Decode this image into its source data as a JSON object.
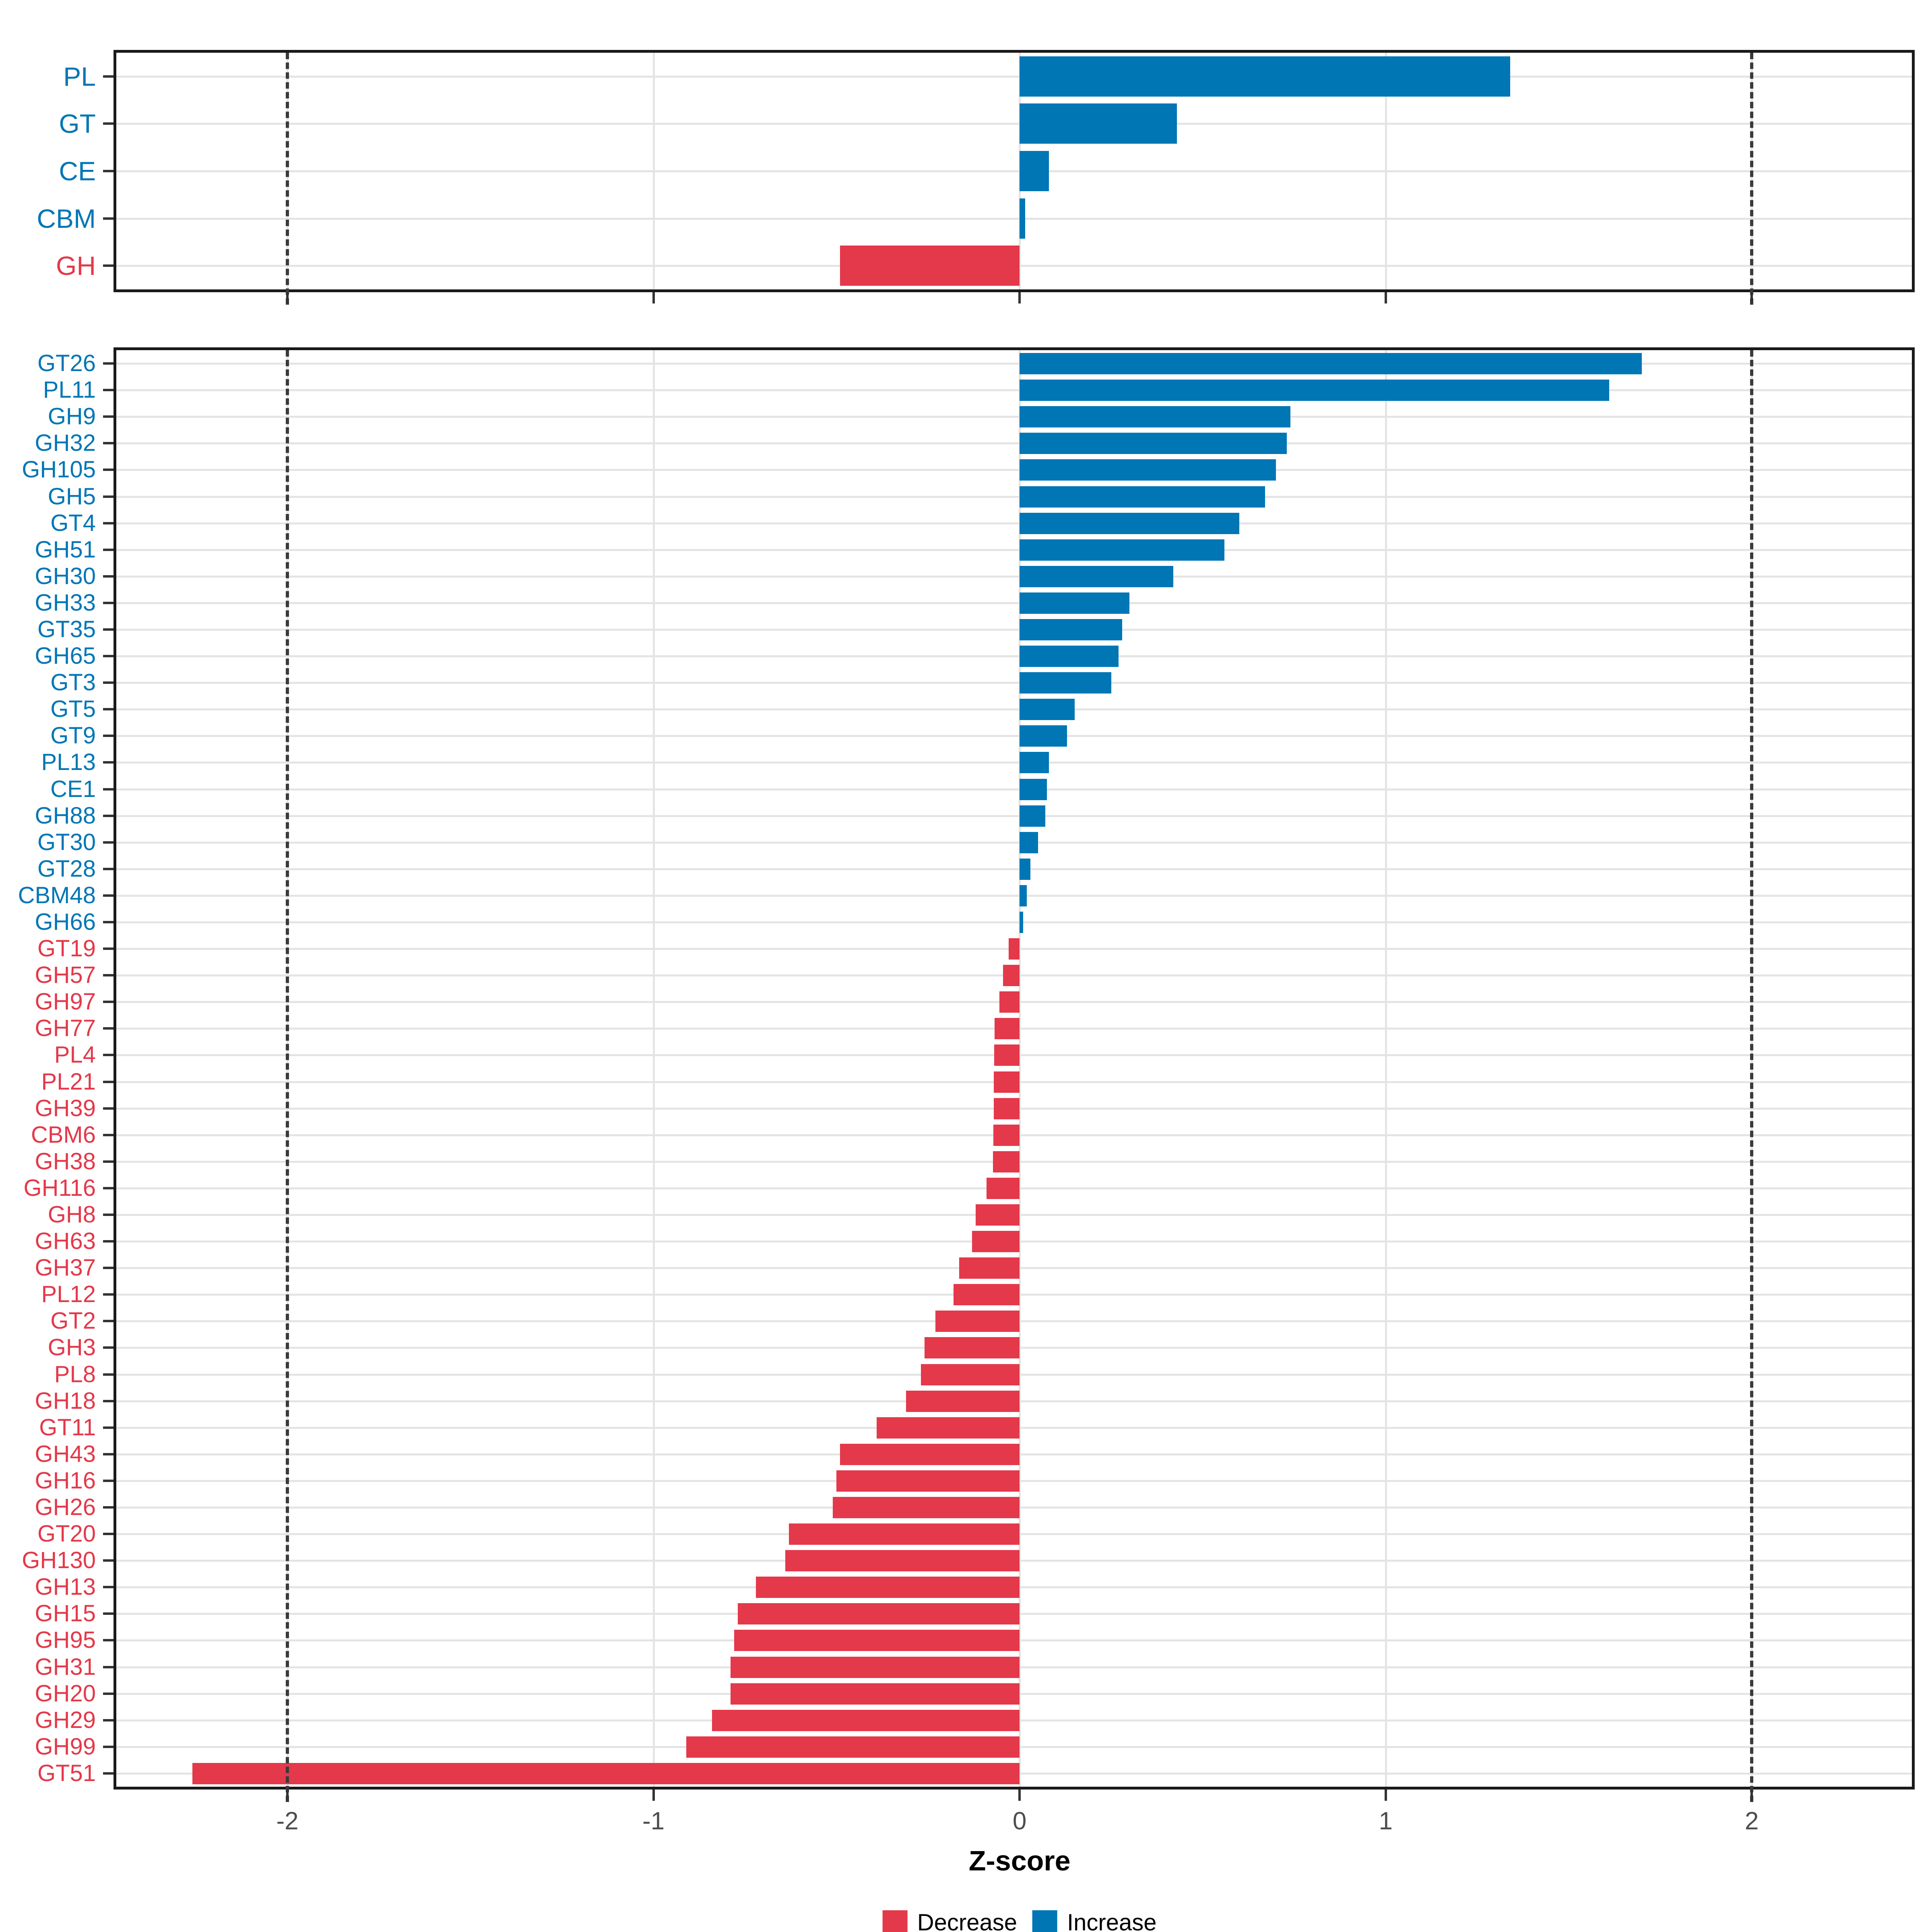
{
  "axis": {
    "label": "Z-score",
    "ticks": [
      -2,
      -1,
      0,
      1,
      2
    ],
    "tick_labels": [
      "-2",
      "-1",
      "0",
      "1",
      "2"
    ],
    "range": [
      -2.475,
      2.445
    ],
    "dashed_reference_lines": [
      -2,
      2
    ],
    "grid": true
  },
  "colors": {
    "increase": "#0076b5",
    "decrease": "#e3394a",
    "grid": "#e4e4e4",
    "panel_border": "#1a1a1a",
    "tick_label": "#4d4d4d",
    "dashed_line": "#3a3a3a"
  },
  "legend": {
    "items": [
      {
        "label": "Decrease",
        "color": "#e3394a"
      },
      {
        "label": "Increase",
        "color": "#0076b5"
      }
    ]
  },
  "chart_data": [
    {
      "type": "bar",
      "orientation": "horizontal",
      "panel": "family",
      "xlabel": "Z-score",
      "xlim": [
        -2.475,
        2.445
      ],
      "categories": [
        "PL",
        "GT",
        "CE",
        "CBM",
        "GH"
      ],
      "values": [
        1.34,
        0.43,
        0.08,
        0.015,
        -0.49
      ],
      "series_rule": "value >= 0 is Increase (blue), value < 0 is Decrease (red)"
    },
    {
      "type": "bar",
      "orientation": "horizontal",
      "panel": "subfamily",
      "xlabel": "Z-score",
      "xlim": [
        -2.475,
        2.445
      ],
      "categories": [
        "GT26",
        "PL11",
        "GH9",
        "GH32",
        "GH105",
        "GH5",
        "GT4",
        "GH51",
        "GH30",
        "GH33",
        "GT35",
        "GH65",
        "GT3",
        "GT5",
        "GT9",
        "PL13",
        "CE1",
        "GH88",
        "GT30",
        "GT28",
        "CBM48",
        "GH66",
        "GT19",
        "GH57",
        "GH97",
        "GH77",
        "PL4",
        "PL21",
        "GH39",
        "CBM6",
        "GH38",
        "GH116",
        "GH8",
        "GH63",
        "GH37",
        "PL12",
        "GT2",
        "GH3",
        "PL8",
        "GH18",
        "GT11",
        "GH43",
        "GH16",
        "GH26",
        "GT20",
        "GH130",
        "GH13",
        "GH15",
        "GH95",
        "GH31",
        "GH20",
        "GH29",
        "GH99",
        "GT51"
      ],
      "values": [
        1.7,
        1.61,
        0.74,
        0.73,
        0.7,
        0.67,
        0.6,
        0.56,
        0.42,
        0.3,
        0.28,
        0.27,
        0.25,
        0.15,
        0.13,
        0.08,
        0.075,
        0.07,
        0.05,
        0.03,
        0.02,
        0.01,
        -0.03,
        -0.045,
        -0.055,
        -0.068,
        -0.069,
        -0.07,
        -0.071,
        -0.072,
        -0.073,
        -0.09,
        -0.12,
        -0.13,
        -0.165,
        -0.18,
        -0.23,
        -0.26,
        -0.27,
        -0.31,
        -0.39,
        -0.49,
        -0.5,
        -0.51,
        -0.63,
        -0.64,
        -0.72,
        -0.77,
        -0.78,
        -0.79,
        -0.79,
        -0.84,
        -0.91,
        -2.26
      ],
      "series_rule": "value >= 0 is Increase (blue), value < 0 is Decrease (red)"
    }
  ]
}
